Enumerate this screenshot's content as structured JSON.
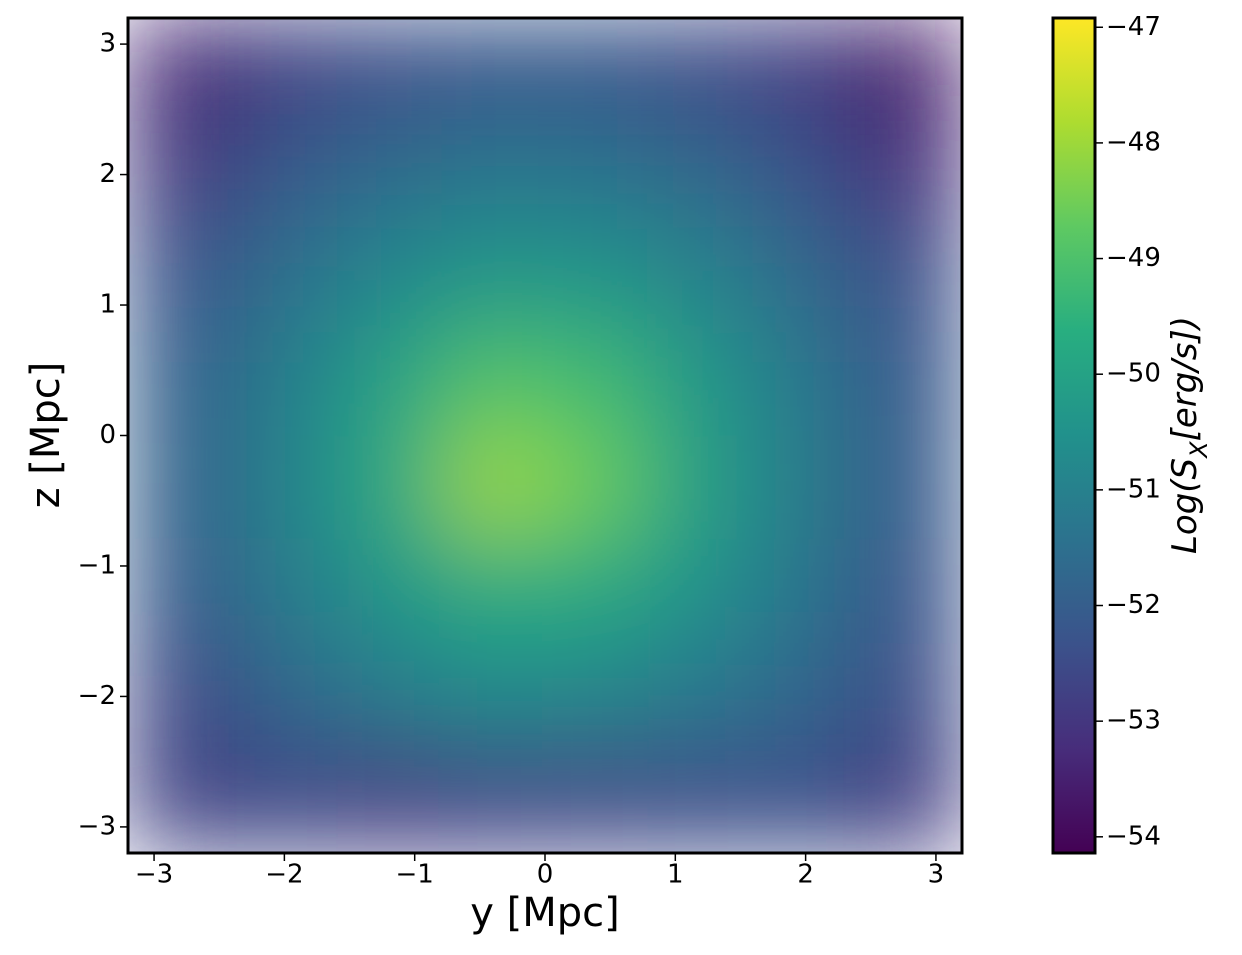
{
  "chart_data": {
    "type": "heatmap",
    "xlabel": "y [Mpc]",
    "ylabel": "z [Mpc]",
    "colorbar_label": [
      "Log(S",
      "X",
      "[erg/s])"
    ],
    "colormap": "viridis",
    "xlim": [
      -3.2,
      3.2
    ],
    "ylim": [
      -3.2,
      3.2
    ],
    "clim": [
      -54.14,
      -46.92
    ],
    "xticks": [
      {
        "value": -3,
        "label": "−3"
      },
      {
        "value": -2,
        "label": "−2"
      },
      {
        "value": -1,
        "label": "−1"
      },
      0,
      1,
      2,
      3
    ],
    "yticks": [
      {
        "value": -3,
        "label": "−3"
      },
      {
        "value": -2,
        "label": "−2"
      },
      {
        "value": -1,
        "label": "−1"
      },
      0,
      1,
      2,
      3
    ],
    "cticks": [
      {
        "value": -54,
        "label": "−54"
      },
      {
        "value": -53,
        "label": "−53"
      },
      {
        "value": -52,
        "label": "−52"
      },
      {
        "value": -51,
        "label": "−51"
      },
      {
        "value": -50,
        "label": "−50"
      },
      {
        "value": -49,
        "label": "−49"
      },
      {
        "value": -48,
        "label": "−48"
      },
      {
        "value": -47,
        "label": "−47"
      }
    ],
    "x": [
      -2.8,
      -2.0,
      -1.2,
      -0.4,
      0.4,
      1.2,
      2.0,
      2.8
    ],
    "y": [
      2.8,
      2.0,
      1.2,
      0.4,
      -0.4,
      -1.2,
      -2.0,
      -2.8
    ],
    "values": [
      [
        -53.4,
        -52.8,
        -52.4,
        -52.2,
        -52.2,
        -52.5,
        -52.9,
        -53.6
      ],
      [
        -53.0,
        -52.1,
        -51.6,
        -51.3,
        -51.4,
        -51.7,
        -52.3,
        -53.2
      ],
      [
        -52.3,
        -51.5,
        -50.8,
        -50.3,
        -50.4,
        -50.9,
        -51.7,
        -52.4
      ],
      [
        -52.0,
        -51.1,
        -50.0,
        -48.9,
        -49.2,
        -50.3,
        -51.3,
        -52.2
      ],
      [
        -51.9,
        -51.0,
        -49.8,
        -48.0,
        -48.6,
        -50.1,
        -51.2,
        -52.1
      ],
      [
        -52.1,
        -51.2,
        -50.4,
        -49.7,
        -49.8,
        -50.5,
        -51.4,
        -52.3
      ],
      [
        -52.6,
        -51.8,
        -51.2,
        -50.8,
        -50.9,
        -51.3,
        -51.8,
        -52.5
      ],
      [
        -52.8,
        -52.6,
        -52.9,
        -52.7,
        -52.6,
        -52.5,
        -52.4,
        -52.9
      ]
    ]
  }
}
